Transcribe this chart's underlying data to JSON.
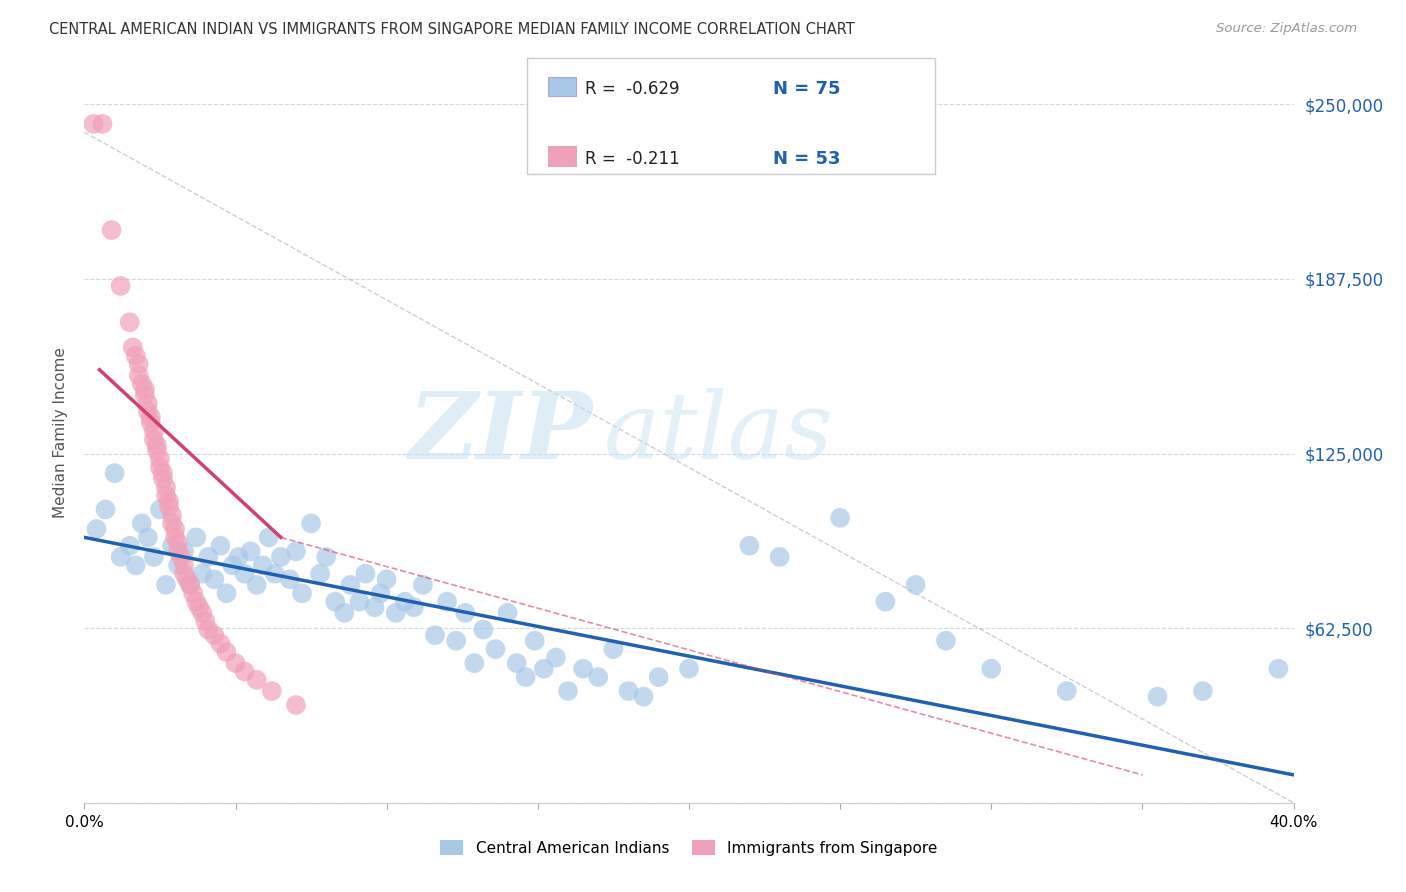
{
  "title": "CENTRAL AMERICAN INDIAN VS IMMIGRANTS FROM SINGAPORE MEDIAN FAMILY INCOME CORRELATION CHART",
  "source": "Source: ZipAtlas.com",
  "ylabel": "Median Family Income",
  "y_ticks": [
    0,
    62500,
    125000,
    187500,
    250000
  ],
  "y_tick_labels": [
    "",
    "$62,500",
    "$125,000",
    "$187,500",
    "$250,000"
  ],
  "x_min": 0.0,
  "x_max": 0.4,
  "y_min": 0,
  "y_max": 265000,
  "legend_label1": "Central American Indians",
  "legend_label2": "Immigrants from Singapore",
  "color_blue": "#a8c8e8",
  "color_pink": "#f0a0b8",
  "color_line_blue": "#2060b0",
  "color_line_pink": "#d04070",
  "color_line_gray": "#c0c0d0",
  "watermark_zip": "ZIP",
  "watermark_atlas": "atlas",
  "blue_dots": [
    [
      0.004,
      98000
    ],
    [
      0.007,
      105000
    ],
    [
      0.01,
      118000
    ],
    [
      0.012,
      88000
    ],
    [
      0.015,
      92000
    ],
    [
      0.017,
      85000
    ],
    [
      0.019,
      100000
    ],
    [
      0.021,
      95000
    ],
    [
      0.023,
      88000
    ],
    [
      0.025,
      105000
    ],
    [
      0.027,
      78000
    ],
    [
      0.029,
      92000
    ],
    [
      0.031,
      85000
    ],
    [
      0.033,
      90000
    ],
    [
      0.035,
      78000
    ],
    [
      0.037,
      95000
    ],
    [
      0.039,
      82000
    ],
    [
      0.041,
      88000
    ],
    [
      0.043,
      80000
    ],
    [
      0.045,
      92000
    ],
    [
      0.047,
      75000
    ],
    [
      0.049,
      85000
    ],
    [
      0.051,
      88000
    ],
    [
      0.053,
      82000
    ],
    [
      0.055,
      90000
    ],
    [
      0.057,
      78000
    ],
    [
      0.059,
      85000
    ],
    [
      0.061,
      95000
    ],
    [
      0.063,
      82000
    ],
    [
      0.065,
      88000
    ],
    [
      0.068,
      80000
    ],
    [
      0.07,
      90000
    ],
    [
      0.072,
      75000
    ],
    [
      0.075,
      100000
    ],
    [
      0.078,
      82000
    ],
    [
      0.08,
      88000
    ],
    [
      0.083,
      72000
    ],
    [
      0.086,
      68000
    ],
    [
      0.088,
      78000
    ],
    [
      0.091,
      72000
    ],
    [
      0.093,
      82000
    ],
    [
      0.096,
      70000
    ],
    [
      0.098,
      75000
    ],
    [
      0.1,
      80000
    ],
    [
      0.103,
      68000
    ],
    [
      0.106,
      72000
    ],
    [
      0.109,
      70000
    ],
    [
      0.112,
      78000
    ],
    [
      0.116,
      60000
    ],
    [
      0.12,
      72000
    ],
    [
      0.123,
      58000
    ],
    [
      0.126,
      68000
    ],
    [
      0.129,
      50000
    ],
    [
      0.132,
      62000
    ],
    [
      0.136,
      55000
    ],
    [
      0.14,
      68000
    ],
    [
      0.143,
      50000
    ],
    [
      0.146,
      45000
    ],
    [
      0.149,
      58000
    ],
    [
      0.152,
      48000
    ],
    [
      0.156,
      52000
    ],
    [
      0.16,
      40000
    ],
    [
      0.165,
      48000
    ],
    [
      0.17,
      45000
    ],
    [
      0.175,
      55000
    ],
    [
      0.18,
      40000
    ],
    [
      0.185,
      38000
    ],
    [
      0.19,
      45000
    ],
    [
      0.2,
      48000
    ],
    [
      0.22,
      92000
    ],
    [
      0.23,
      88000
    ],
    [
      0.25,
      102000
    ],
    [
      0.265,
      72000
    ],
    [
      0.275,
      78000
    ],
    [
      0.285,
      58000
    ],
    [
      0.3,
      48000
    ],
    [
      0.325,
      40000
    ],
    [
      0.355,
      38000
    ],
    [
      0.37,
      40000
    ],
    [
      0.395,
      48000
    ]
  ],
  "pink_dots": [
    [
      0.003,
      243000
    ],
    [
      0.006,
      243000
    ],
    [
      0.009,
      205000
    ],
    [
      0.012,
      185000
    ],
    [
      0.015,
      172000
    ],
    [
      0.016,
      163000
    ],
    [
      0.017,
      160000
    ],
    [
      0.018,
      157000
    ],
    [
      0.018,
      153000
    ],
    [
      0.019,
      150000
    ],
    [
      0.02,
      148000
    ],
    [
      0.02,
      146000
    ],
    [
      0.021,
      143000
    ],
    [
      0.021,
      140000
    ],
    [
      0.022,
      138000
    ],
    [
      0.022,
      136000
    ],
    [
      0.023,
      133000
    ],
    [
      0.023,
      130000
    ],
    [
      0.024,
      128000
    ],
    [
      0.024,
      126000
    ],
    [
      0.025,
      123000
    ],
    [
      0.025,
      120000
    ],
    [
      0.026,
      118000
    ],
    [
      0.026,
      116000
    ],
    [
      0.027,
      113000
    ],
    [
      0.027,
      110000
    ],
    [
      0.028,
      108000
    ],
    [
      0.028,
      106000
    ],
    [
      0.029,
      103000
    ],
    [
      0.029,
      100000
    ],
    [
      0.03,
      98000
    ],
    [
      0.03,
      95000
    ],
    [
      0.031,
      93000
    ],
    [
      0.031,
      90000
    ],
    [
      0.032,
      88000
    ],
    [
      0.033,
      85000
    ],
    [
      0.033,
      82000
    ],
    [
      0.034,
      80000
    ],
    [
      0.035,
      78000
    ],
    [
      0.036,
      75000
    ],
    [
      0.037,
      72000
    ],
    [
      0.038,
      70000
    ],
    [
      0.039,
      68000
    ],
    [
      0.04,
      65000
    ],
    [
      0.041,
      62000
    ],
    [
      0.043,
      60000
    ],
    [
      0.045,
      57000
    ],
    [
      0.047,
      54000
    ],
    [
      0.05,
      50000
    ],
    [
      0.053,
      47000
    ],
    [
      0.057,
      44000
    ],
    [
      0.062,
      40000
    ],
    [
      0.07,
      35000
    ]
  ]
}
